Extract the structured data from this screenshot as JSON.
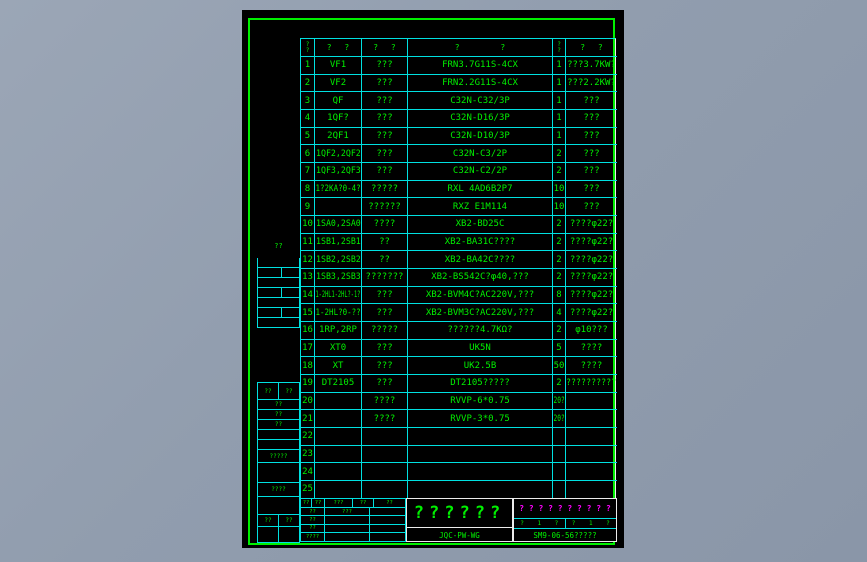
{
  "colors": {
    "background": "#919dae",
    "canvas": "#000000",
    "grid": "#00e0e0",
    "text": "#00f000",
    "accent": "#ff00ff",
    "frame": "#00f000"
  },
  "side": {
    "top_label": "??",
    "mid_header": [
      "??",
      "??"
    ],
    "mid_rows": [
      "??",
      "??",
      "??"
    ],
    "label_a": "?????",
    "label_b": "????",
    "bottom_header": [
      "??",
      "??"
    ]
  },
  "table": {
    "headers": {
      "no_top": "?",
      "no_bottom": "?",
      "designation": "? ?",
      "name": "? ?",
      "model": "? ?",
      "qty_top": "?",
      "qty_bottom": "?",
      "remarks": "? ?"
    },
    "rows": [
      {
        "no": "1",
        "designation": "VF1",
        "name": "???",
        "model": "FRN3.7G11S-4CX",
        "qty": "1",
        "remarks": "???3.7KW?"
      },
      {
        "no": "2",
        "designation": "VF2",
        "name": "???",
        "model": "FRN2.2G11S-4CX",
        "qty": "1",
        "remarks": "???2.2KW?"
      },
      {
        "no": "3",
        "designation": "QF",
        "name": "???",
        "model": "C32N-C32/3P",
        "qty": "1",
        "remarks": "???"
      },
      {
        "no": "4",
        "designation": "1QF?",
        "name": "???",
        "model": "C32N-D16/3P",
        "qty": "1",
        "remarks": "???"
      },
      {
        "no": "5",
        "designation": "2QF1",
        "name": "???",
        "model": "C32N-D10/3P",
        "qty": "1",
        "remarks": "???"
      },
      {
        "no": "6",
        "designation": "1QF2,2QF2",
        "name": "???",
        "model": "C32N-C3/2P",
        "qty": "2",
        "remarks": "???"
      },
      {
        "no": "7",
        "designation": "1QF3,2QF3",
        "name": "???",
        "model": "C32N-C2/2P",
        "qty": "2",
        "remarks": "???"
      },
      {
        "no": "8",
        "designation": "1?2KA?0-4?",
        "name": "?????",
        "model": "RXL 4AD6B2P7",
        "qty": "10",
        "remarks": "???"
      },
      {
        "no": "9",
        "designation": "",
        "name": "??????",
        "model": "RXZ E1M114",
        "qty": "10",
        "remarks": "???"
      },
      {
        "no": "10",
        "designation": "1SA0,2SA0",
        "name": "????",
        "model": "XB2-BD25C",
        "qty": "2",
        "remarks": "????φ22?"
      },
      {
        "no": "11",
        "designation": "1SB1,2SB1",
        "name": "??",
        "model": "XB2-BA31C????",
        "qty": "2",
        "remarks": "????φ22?"
      },
      {
        "no": "12",
        "designation": "1SB2,2SB2",
        "name": "??",
        "model": "XB2-BA42C????",
        "qty": "2",
        "remarks": "????φ22?"
      },
      {
        "no": "13",
        "designation": "1SB3,2SB3",
        "name": "???????",
        "model": "XB2-BS542C?φ40,???",
        "qty": "2",
        "remarks": "????φ22?"
      },
      {
        "no": "14",
        "designation": "1-2HL1-2HL?-1?",
        "name": "???",
        "model": "XB2-BVM4C?AC220V,???",
        "qty": "8",
        "remarks": "????φ22?"
      },
      {
        "no": "15",
        "designation": "1-2HL?0-??",
        "name": "???",
        "model": "XB2-BVM3C?AC220V,???",
        "qty": "4",
        "remarks": "????φ22?"
      },
      {
        "no": "16",
        "designation": "1RP,2RP",
        "name": "?????",
        "model": "??????4.7KΩ?",
        "qty": "2",
        "remarks": "φ10???"
      },
      {
        "no": "17",
        "designation": "XT0",
        "name": "???",
        "model": "UK5N",
        "qty": "5",
        "remarks": "????"
      },
      {
        "no": "18",
        "designation": "XT",
        "name": "???",
        "model": "UK2.5B",
        "qty": "50",
        "remarks": "????"
      },
      {
        "no": "19",
        "designation": "DT2105",
        "name": "???",
        "model": "DT2105?????",
        "qty": "2",
        "remarks": "??????????"
      },
      {
        "no": "20",
        "designation": "",
        "name": "????",
        "model": "RVVP-6*0.75",
        "qty": "20?",
        "remarks": ""
      },
      {
        "no": "21",
        "designation": "",
        "name": "????",
        "model": "RVVP-3*0.75",
        "qty": "20?",
        "remarks": ""
      },
      {
        "no": "22",
        "designation": "",
        "name": "",
        "model": "",
        "qty": "",
        "remarks": ""
      },
      {
        "no": "23",
        "designation": "",
        "name": "",
        "model": "",
        "qty": "",
        "remarks": ""
      },
      {
        "no": "24",
        "designation": "",
        "name": "",
        "model": "",
        "qty": "",
        "remarks": ""
      },
      {
        "no": "25",
        "designation": "",
        "name": "",
        "model": "",
        "qty": "",
        "remarks": ""
      }
    ]
  },
  "title_block": {
    "rev_header": [
      "??",
      "??",
      "???",
      "??",
      "??"
    ],
    "rev_rows": [
      [
        "??",
        "???",
        ""
      ],
      [
        "??",
        "",
        ""
      ],
      [
        "??",
        "",
        ""
      ],
      [
        "????",
        "",
        ""
      ]
    ],
    "title": "??????",
    "drawing_code": "JQC-PW-WG",
    "company": "? ? ? ? ? ? ? ? ? ? ? ?",
    "sheet_left": "? 1 ?",
    "sheet_right": "? 1 ?",
    "doc_number": "SM9-06-56?????"
  }
}
